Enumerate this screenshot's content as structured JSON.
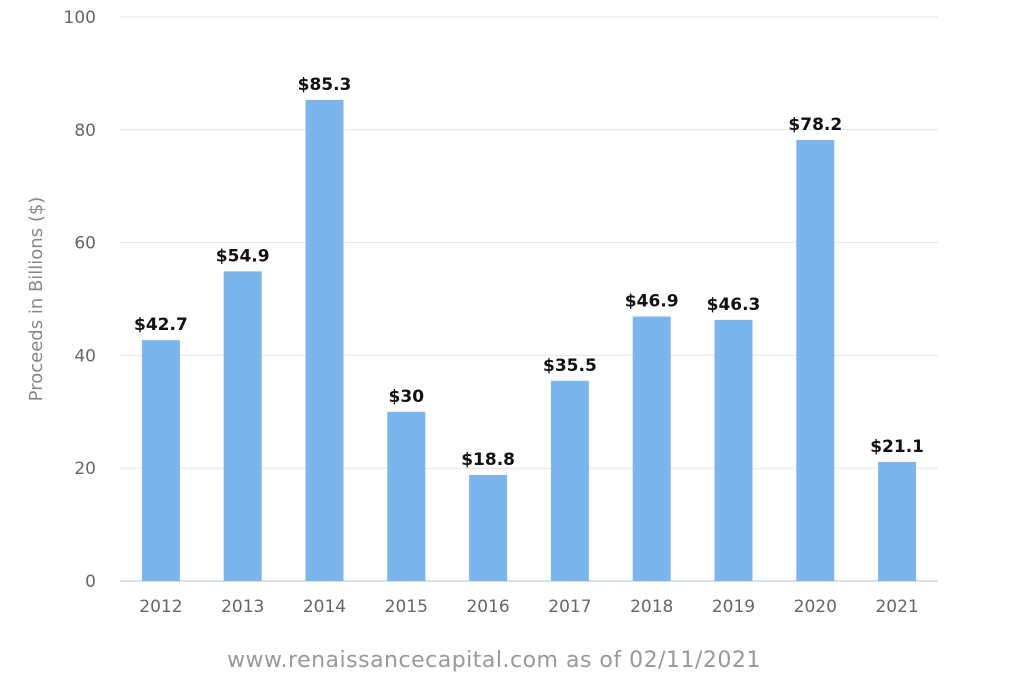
{
  "chart_data": {
    "type": "bar",
    "categories": [
      "2012",
      "2013",
      "2014",
      "2015",
      "2016",
      "2017",
      "2018",
      "2019",
      "2020",
      "2021"
    ],
    "values": [
      42.7,
      54.9,
      85.3,
      30,
      18.8,
      35.5,
      46.9,
      46.3,
      78.2,
      21.1
    ],
    "value_labels": [
      "$42.7",
      "$54.9",
      "$85.3",
      "$30",
      "$18.8",
      "$35.5",
      "$46.9",
      "$46.3",
      "$78.2",
      "$21.1"
    ],
    "title": "",
    "xlabel": "",
    "ylabel": "Proceeds in Billions ($)",
    "ylim": [
      0,
      100
    ],
    "yticks": [
      "0",
      "20",
      "40",
      "60",
      "80",
      "100"
    ],
    "grid": true,
    "legend": "none",
    "bar_color": "#7cb5ec"
  },
  "footer": {
    "source": "www.renaissancecapital.com as of 02/11/2021"
  }
}
